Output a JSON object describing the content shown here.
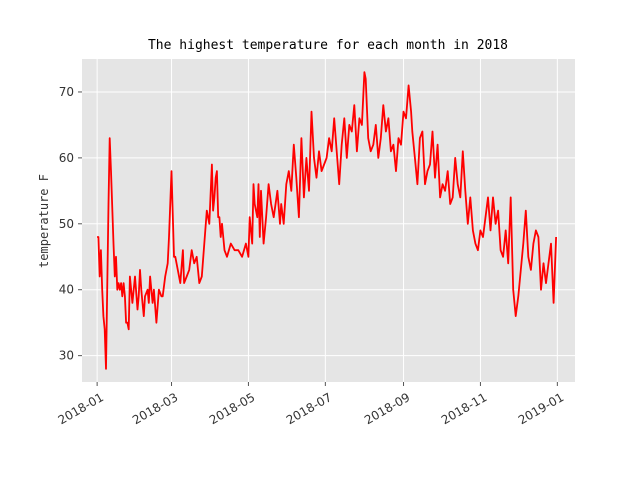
{
  "chart_data": {
    "type": "line",
    "title": "The highest temperature for each month in 2018",
    "xlabel": "",
    "ylabel": "temperature F",
    "xlim": [
      "2017-12-20",
      "2019-01-15"
    ],
    "ylim": [
      26,
      75
    ],
    "x_ticks": [
      "2018-01",
      "2018-03",
      "2018-05",
      "2018-07",
      "2018-09",
      "2018-11",
      "2019-01"
    ],
    "y_ticks": [
      30,
      40,
      50,
      60,
      70
    ],
    "grid": true,
    "background": "#e5e5e5",
    "line_color": "#ff0000",
    "series": [
      {
        "x": [
          "2018-01-01",
          "2018-01-02",
          "2018-01-03",
          "2018-01-04",
          "2018-01-05",
          "2018-01-06",
          "2018-01-07",
          "2018-01-08",
          "2018-01-09",
          "2018-01-10",
          "2018-01-11",
          "2018-01-12",
          "2018-01-14",
          "2018-01-15",
          "2018-01-16",
          "2018-01-17",
          "2018-01-18",
          "2018-01-19",
          "2018-01-20",
          "2018-01-21",
          "2018-01-22",
          "2018-01-23",
          "2018-01-24",
          "2018-01-25",
          "2018-01-26",
          "2018-01-27",
          "2018-01-29",
          "2018-01-31",
          "2018-02-02",
          "2018-02-03",
          "2018-02-04",
          "2018-02-05",
          "2018-02-06",
          "2018-02-07",
          "2018-02-08",
          "2018-02-10",
          "2018-02-11",
          "2018-02-12",
          "2018-02-14",
          "2018-02-15",
          "2018-02-17",
          "2018-02-19",
          "2018-02-21",
          "2018-02-22",
          "2018-02-24",
          "2018-02-26",
          "2018-02-27",
          "2018-03-01",
          "2018-03-03",
          "2018-03-04",
          "2018-03-06",
          "2018-03-08",
          "2018-03-10",
          "2018-03-11",
          "2018-03-13",
          "2018-03-15",
          "2018-03-17",
          "2018-03-19",
          "2018-03-21",
          "2018-03-23",
          "2018-03-25",
          "2018-03-27",
          "2018-03-29",
          "2018-03-31",
          "2018-04-02",
          "2018-04-03",
          "2018-04-04",
          "2018-04-05",
          "2018-04-06",
          "2018-04-07",
          "2018-04-08",
          "2018-04-09",
          "2018-04-10",
          "2018-04-12",
          "2018-04-14",
          "2018-04-17",
          "2018-04-20",
          "2018-04-23",
          "2018-04-26",
          "2018-04-29",
          "2018-05-01",
          "2018-05-02",
          "2018-05-04",
          "2018-05-05",
          "2018-05-06",
          "2018-05-08",
          "2018-05-09",
          "2018-05-10",
          "2018-05-11",
          "2018-05-13",
          "2018-05-15",
          "2018-05-17",
          "2018-05-19",
          "2018-05-21",
          "2018-05-24",
          "2018-05-26",
          "2018-05-27",
          "2018-05-29",
          "2018-05-31",
          "2018-06-02",
          "2018-06-04",
          "2018-06-06",
          "2018-06-08",
          "2018-06-10",
          "2018-06-12",
          "2018-06-14",
          "2018-06-16",
          "2018-06-18",
          "2018-06-20",
          "2018-06-22",
          "2018-06-24",
          "2018-06-26",
          "2018-06-28",
          "2018-06-30",
          "2018-07-02",
          "2018-07-04",
          "2018-07-06",
          "2018-07-08",
          "2018-07-10",
          "2018-07-12",
          "2018-07-14",
          "2018-07-16",
          "2018-07-18",
          "2018-07-20",
          "2018-07-22",
          "2018-07-24",
          "2018-07-26",
          "2018-07-28",
          "2018-07-30",
          "2018-08-01",
          "2018-08-02",
          "2018-08-04",
          "2018-08-06",
          "2018-08-08",
          "2018-08-10",
          "2018-08-12",
          "2018-08-14",
          "2018-08-16",
          "2018-08-18",
          "2018-08-20",
          "2018-08-22",
          "2018-08-24",
          "2018-08-26",
          "2018-08-28",
          "2018-08-30",
          "2018-09-01",
          "2018-09-03",
          "2018-09-05",
          "2018-09-07",
          "2018-09-08",
          "2018-09-10",
          "2018-09-12",
          "2018-09-14",
          "2018-09-16",
          "2018-09-18",
          "2018-09-20",
          "2018-09-22",
          "2018-09-24",
          "2018-09-26",
          "2018-09-28",
          "2018-09-30",
          "2018-10-02",
          "2018-10-04",
          "2018-10-06",
          "2018-10-08",
          "2018-10-10",
          "2018-10-12",
          "2018-10-14",
          "2018-10-16",
          "2018-10-18",
          "2018-10-20",
          "2018-10-22",
          "2018-10-24",
          "2018-10-26",
          "2018-10-28",
          "2018-10-30",
          "2018-11-01",
          "2018-11-03",
          "2018-11-05",
          "2018-11-07",
          "2018-11-09",
          "2018-11-11",
          "2018-11-13",
          "2018-11-15",
          "2018-11-17",
          "2018-11-19",
          "2018-11-21",
          "2018-11-23",
          "2018-11-25",
          "2018-11-27",
          "2018-11-29",
          "2018-12-01",
          "2018-12-03",
          "2018-12-05",
          "2018-12-07",
          "2018-12-09",
          "2018-12-11",
          "2018-12-13",
          "2018-12-15",
          "2018-12-17",
          "2018-12-19",
          "2018-12-21",
          "2018-12-23",
          "2018-12-25",
          "2018-12-27",
          "2018-12-29",
          "2018-12-31"
        ],
        "y": [
          48,
          48,
          42,
          46,
          40,
          36,
          34,
          28,
          40,
          53,
          63,
          58,
          47,
          42,
          45,
          40,
          41,
          40,
          41,
          39,
          41,
          39,
          35,
          35,
          34,
          42,
          38,
          42,
          37,
          39,
          43,
          40,
          38,
          36,
          39,
          40,
          38,
          42,
          38,
          40,
          35,
          40,
          39,
          39,
          42,
          44,
          48,
          58,
          45,
          45,
          43,
          41,
          46,
          41,
          42,
          43,
          46,
          44,
          45,
          41,
          42,
          47,
          52,
          50,
          59,
          52,
          54,
          57,
          58,
          51,
          51,
          48,
          50,
          46,
          45,
          47,
          46,
          46,
          45,
          47,
          45,
          51,
          47,
          56,
          53,
          51,
          56,
          48,
          55,
          47,
          51,
          56,
          53,
          51,
          55,
          50,
          53,
          50,
          56,
          58,
          55,
          62,
          57,
          51,
          63,
          54,
          60,
          55,
          67,
          60,
          57,
          61,
          58,
          59,
          60,
          63,
          61,
          66,
          61,
          56,
          62,
          66,
          60,
          65,
          64,
          68,
          61,
          66,
          65,
          73,
          72,
          63,
          61,
          62,
          65,
          60,
          63,
          68,
          64,
          66,
          61,
          62,
          58,
          63,
          62,
          67,
          66,
          71,
          67,
          64,
          60,
          56,
          63,
          64,
          56,
          58,
          59,
          64,
          57,
          62,
          54,
          56,
          55,
          58,
          53,
          54,
          60,
          56,
          54,
          61,
          55,
          50,
          54,
          49,
          47,
          46,
          49,
          48,
          51,
          54,
          49,
          54,
          50,
          52,
          46,
          45,
          49,
          44,
          54,
          40,
          36,
          39,
          43,
          47,
          52,
          45,
          43,
          47,
          49,
          48,
          40,
          44,
          41,
          44,
          47,
          38,
          48
        ]
      }
    ]
  }
}
